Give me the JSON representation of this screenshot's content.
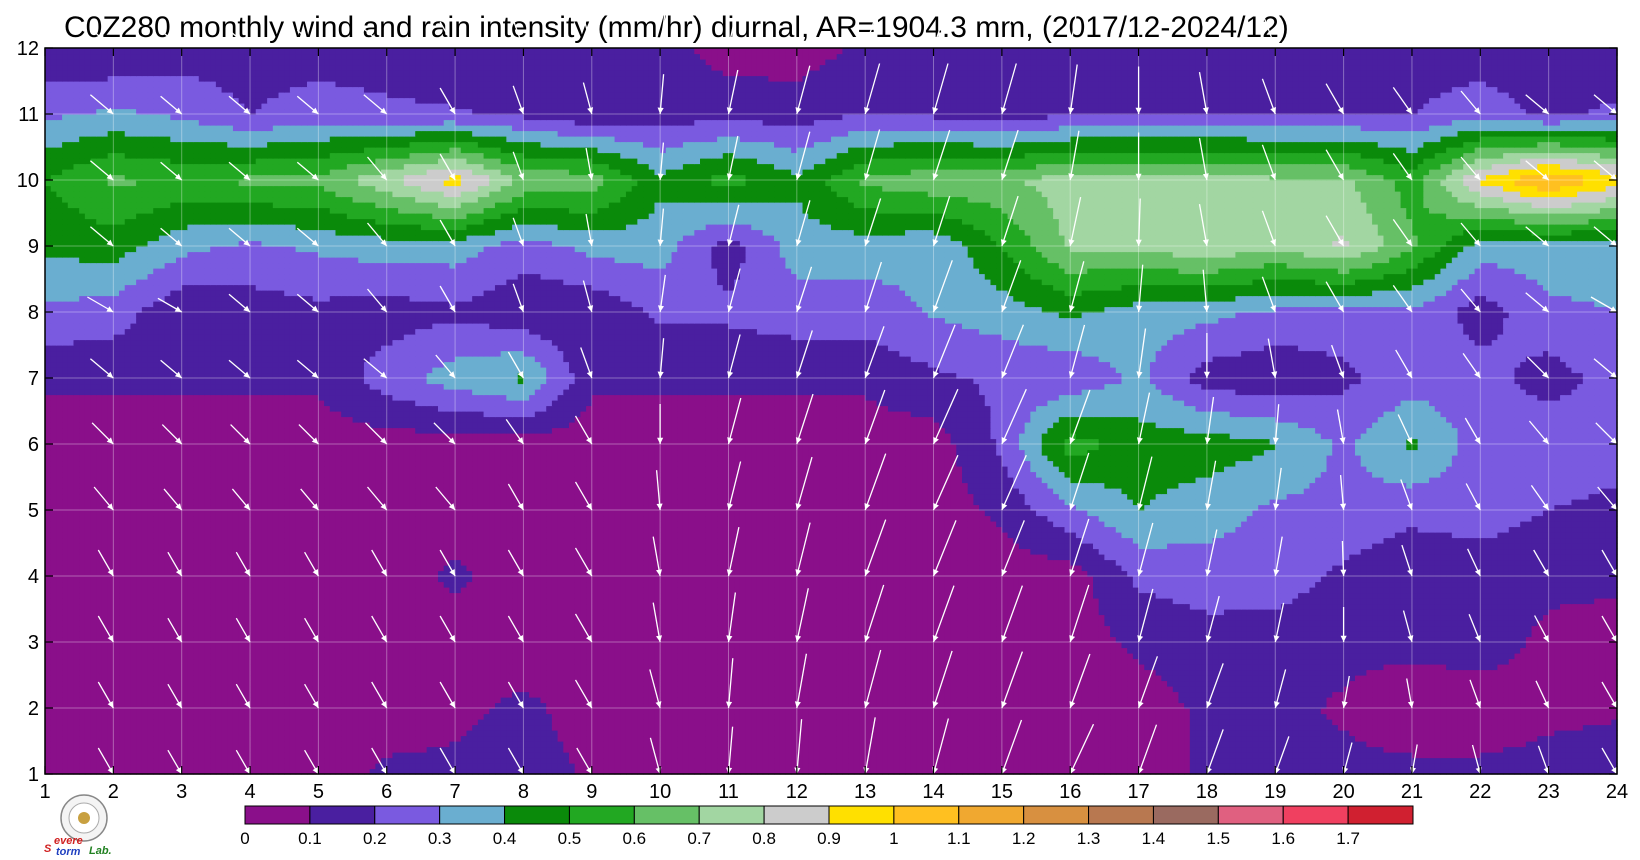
{
  "chart_data": {
    "type": "heatmap",
    "title": "C0Z280 monthly wind and rain intensity (mm/hr) diurnal, AR=1904.3 mm, (2017/12-2024/12)",
    "xlabel": "",
    "ylabel": "",
    "xlim": [
      1,
      24
    ],
    "ylim": [
      1,
      12
    ],
    "x_ticks": [
      "1",
      "2",
      "3",
      "4",
      "5",
      "6",
      "7",
      "8",
      "9",
      "10",
      "11",
      "12",
      "13",
      "14",
      "15",
      "16",
      "17",
      "18",
      "19",
      "20",
      "21",
      "22",
      "23",
      "24"
    ],
    "y_ticks": [
      "1",
      "2",
      "3",
      "4",
      "5",
      "6",
      "7",
      "8",
      "9",
      "10",
      "11",
      "12"
    ],
    "grid": true,
    "levels": [
      0,
      0.1,
      0.2,
      0.3,
      0.4,
      0.5,
      0.6,
      0.7,
      0.8,
      0.9,
      1,
      1.1,
      1.2,
      1.3,
      1.4,
      1.5,
      1.6,
      1.7
    ],
    "level_labels": [
      "0",
      "0.1",
      "0.2",
      "0.3",
      "0.4",
      "0.5",
      "0.6",
      "0.7",
      "0.8",
      "0.9",
      "1",
      "1.1",
      "1.2",
      "1.3",
      "1.4",
      "1.5",
      "1.6",
      "1.7"
    ],
    "colors": [
      "#8a0f8a",
      "#4a1fa0",
      "#7a5ae0",
      "#6aaed0",
      "#0a8a0a",
      "#22a822",
      "#66c066",
      "#a2d6a2",
      "#cccccc",
      "#ffe000",
      "#ffc020",
      "#f0a830",
      "#d89040",
      "#b87850",
      "#9a6a60",
      "#e06080",
      "#f04060",
      "#d02030"
    ],
    "contour_line_color": "#f0a020",
    "rain_rows": [
      [
        0.05,
        0.05,
        0.05,
        0.05,
        0.05,
        0.12,
        0.12,
        0.14,
        0.09,
        0.05,
        0.05,
        0.05,
        0.05,
        0.05,
        0.05,
        0.05,
        0.05,
        0.12,
        0.12,
        0.12,
        0.12,
        0.12,
        0.13,
        0.14
      ],
      [
        0.05,
        0.05,
        0.05,
        0.05,
        0.05,
        0.05,
        0.08,
        0.12,
        0.06,
        0.05,
        0.05,
        0.05,
        0.05,
        0.05,
        0.05,
        0.05,
        0.05,
        0.12,
        0.12,
        0.09,
        0.05,
        0.05,
        0.08,
        0.09
      ],
      [
        0.05,
        0.05,
        0.05,
        0.05,
        0.05,
        0.05,
        0.05,
        0.05,
        0.05,
        0.05,
        0.05,
        0.05,
        0.05,
        0.05,
        0.05,
        0.05,
        0.12,
        0.16,
        0.15,
        0.12,
        0.12,
        0.14,
        0.08,
        0.06
      ],
      [
        0.05,
        0.05,
        0.05,
        0.05,
        0.05,
        0.05,
        0.12,
        0.05,
        0.1,
        0.05,
        0.05,
        0.05,
        0.05,
        0.05,
        0.05,
        0.05,
        0.22,
        0.25,
        0.25,
        0.18,
        0.12,
        0.14,
        0.12,
        0.12
      ],
      [
        0.05,
        0.05,
        0.05,
        0.05,
        0.05,
        0.05,
        0.05,
        0.05,
        0.05,
        0.05,
        0.05,
        0.05,
        0.05,
        0.05,
        0.12,
        0.28,
        0.4,
        0.35,
        0.28,
        0.27,
        0.23,
        0.25,
        0.2,
        0.17
      ],
      [
        0.05,
        0.05,
        0.05,
        0.05,
        0.05,
        0.05,
        0.05,
        0.05,
        0.05,
        0.05,
        0.05,
        0.05,
        0.05,
        0.05,
        0.22,
        0.55,
        0.45,
        0.45,
        0.41,
        0.28,
        0.42,
        0.25,
        0.28,
        0.25
      ],
      [
        0.12,
        0.12,
        0.12,
        0.12,
        0.12,
        0.25,
        0.35,
        0.42,
        0.12,
        0.12,
        0.12,
        0.12,
        0.12,
        0.18,
        0.22,
        0.22,
        0.32,
        0.15,
        0.12,
        0.18,
        0.25,
        0.25,
        0.15,
        0.25
      ],
      [
        0.28,
        0.25,
        0.12,
        0.15,
        0.17,
        0.15,
        0.18,
        0.12,
        0.12,
        0.22,
        0.22,
        0.25,
        0.25,
        0.31,
        0.35,
        0.42,
        0.35,
        0.33,
        0.28,
        0.25,
        0.28,
        0.15,
        0.28,
        0.3
      ],
      [
        0.42,
        0.45,
        0.33,
        0.28,
        0.32,
        0.35,
        0.35,
        0.25,
        0.33,
        0.35,
        0.15,
        0.35,
        0.35,
        0.32,
        0.5,
        0.72,
        0.72,
        0.78,
        0.72,
        0.82,
        0.62,
        0.35,
        0.35,
        0.35
      ],
      [
        0.5,
        0.62,
        0.58,
        0.62,
        0.63,
        0.78,
        0.95,
        0.68,
        0.66,
        0.42,
        0.55,
        0.42,
        0.62,
        0.68,
        0.68,
        0.75,
        0.75,
        0.75,
        0.72,
        0.72,
        0.55,
        0.92,
        1.12,
        0.95
      ],
      [
        0.28,
        0.32,
        0.28,
        0.2,
        0.25,
        0.22,
        0.21,
        0.18,
        0.12,
        0.15,
        0.17,
        0.15,
        0.2,
        0.18,
        0.15,
        0.19,
        0.2,
        0.2,
        0.2,
        0.2,
        0.2,
        0.25,
        0.18,
        0.22
      ],
      [
        0.12,
        0.1,
        0.15,
        0.15,
        0.15,
        0.15,
        0.12,
        0.15,
        0.14,
        0.15,
        0.05,
        0.05,
        0.12,
        0.12,
        0.12,
        0.12,
        0.15,
        0.15,
        0.15,
        0.12,
        0.15,
        0.15,
        0.15,
        0.12
      ]
    ],
    "wind_dir_deg": [
      [
        300,
        300,
        300,
        300,
        300,
        300,
        300,
        300,
        300,
        285,
        265,
        265,
        260,
        255,
        250,
        245,
        250,
        250,
        250,
        255,
        260,
        285,
        290,
        300
      ],
      [
        300,
        300,
        300,
        300,
        300,
        300,
        300,
        300,
        300,
        285,
        265,
        260,
        255,
        252,
        250,
        250,
        250,
        250,
        255,
        260,
        280,
        290,
        295,
        300
      ],
      [
        300,
        300,
        300,
        300,
        300,
        300,
        300,
        300,
        300,
        280,
        262,
        258,
        252,
        250,
        250,
        252,
        255,
        255,
        258,
        270,
        285,
        292,
        298,
        300
      ],
      [
        300,
        300,
        300,
        300,
        300,
        300,
        300,
        300,
        300,
        280,
        258,
        256,
        250,
        248,
        248,
        252,
        255,
        258,
        260,
        272,
        288,
        295,
        300,
        300
      ],
      [
        310,
        310,
        310,
        310,
        310,
        310,
        310,
        300,
        300,
        275,
        256,
        254,
        250,
        246,
        246,
        252,
        256,
        260,
        262,
        275,
        290,
        298,
        305,
        310
      ],
      [
        315,
        315,
        315,
        315,
        315,
        315,
        315,
        305,
        300,
        270,
        255,
        252,
        250,
        246,
        246,
        250,
        258,
        262,
        265,
        280,
        295,
        300,
        310,
        315
      ],
      [
        320,
        320,
        320,
        320,
        320,
        320,
        310,
        300,
        290,
        265,
        255,
        252,
        250,
        248,
        248,
        255,
        262,
        270,
        280,
        290,
        300,
        305,
        315,
        320
      ],
      [
        330,
        330,
        330,
        320,
        320,
        310,
        300,
        290,
        285,
        262,
        255,
        252,
        252,
        250,
        250,
        255,
        265,
        275,
        290,
        300,
        305,
        310,
        320,
        330
      ],
      [
        320,
        320,
        320,
        320,
        320,
        310,
        300,
        290,
        280,
        265,
        256,
        254,
        252,
        252,
        252,
        258,
        268,
        280,
        290,
        300,
        305,
        310,
        320,
        320
      ],
      [
        320,
        320,
        320,
        320,
        320,
        310,
        300,
        290,
        280,
        265,
        258,
        255,
        254,
        252,
        252,
        260,
        270,
        280,
        290,
        300,
        305,
        310,
        320,
        320
      ],
      [
        320,
        320,
        320,
        320,
        320,
        320,
        300,
        290,
        285,
        265,
        258,
        255,
        254,
        254,
        254,
        262,
        270,
        280,
        290,
        300,
        305,
        310,
        320,
        320
      ],
      [
        320,
        320,
        320,
        320,
        320,
        320,
        300,
        290,
        285,
        262,
        258,
        254,
        252,
        252,
        252,
        260,
        270,
        280,
        290,
        300,
        305,
        310,
        320,
        320
      ]
    ],
    "wind_speed": [
      [
        0.4,
        0.4,
        0.35,
        0.35,
        0.35,
        0.4,
        0.4,
        0.4,
        0.4,
        0.55,
        0.75,
        0.9,
        0.95,
        0.95,
        0.95,
        0.9,
        0.85,
        0.75,
        0.6,
        0.45,
        0.4,
        0.4,
        0.4,
        0.4
      ],
      [
        0.4,
        0.4,
        0.35,
        0.35,
        0.35,
        0.4,
        0.4,
        0.4,
        0.45,
        0.6,
        0.8,
        0.9,
        1.0,
        1.0,
        1.0,
        0.95,
        0.9,
        0.75,
        0.6,
        0.45,
        0.4,
        0.4,
        0.4,
        0.4
      ],
      [
        0.4,
        0.4,
        0.35,
        0.35,
        0.35,
        0.4,
        0.4,
        0.4,
        0.45,
        0.6,
        0.8,
        0.9,
        1.0,
        1.0,
        1.0,
        1.0,
        0.9,
        0.75,
        0.6,
        0.5,
        0.45,
        0.4,
        0.4,
        0.4
      ],
      [
        0.4,
        0.4,
        0.35,
        0.35,
        0.35,
        0.4,
        0.4,
        0.4,
        0.45,
        0.6,
        0.8,
        0.9,
        1.0,
        1.0,
        1.0,
        1.0,
        0.9,
        0.75,
        0.6,
        0.5,
        0.45,
        0.4,
        0.4,
        0.4
      ],
      [
        0.4,
        0.4,
        0.35,
        0.35,
        0.35,
        0.4,
        0.4,
        0.4,
        0.45,
        0.6,
        0.8,
        0.9,
        1.0,
        1.0,
        1.0,
        1.0,
        0.9,
        0.8,
        0.65,
        0.5,
        0.45,
        0.4,
        0.4,
        0.4
      ],
      [
        0.4,
        0.4,
        0.35,
        0.35,
        0.35,
        0.4,
        0.4,
        0.4,
        0.45,
        0.6,
        0.75,
        0.85,
        0.95,
        1.0,
        1.0,
        0.95,
        0.85,
        0.75,
        0.6,
        0.5,
        0.45,
        0.4,
        0.4,
        0.4
      ],
      [
        0.4,
        0.4,
        0.35,
        0.35,
        0.35,
        0.4,
        0.4,
        0.4,
        0.45,
        0.6,
        0.7,
        0.8,
        0.9,
        0.95,
        0.95,
        0.9,
        0.8,
        0.7,
        0.6,
        0.5,
        0.45,
        0.4,
        0.4,
        0.4
      ],
      [
        0.4,
        0.4,
        0.35,
        0.35,
        0.35,
        0.4,
        0.4,
        0.4,
        0.45,
        0.55,
        0.7,
        0.75,
        0.85,
        0.9,
        0.9,
        0.85,
        0.75,
        0.65,
        0.55,
        0.5,
        0.45,
        0.4,
        0.4,
        0.4
      ],
      [
        0.4,
        0.4,
        0.35,
        0.35,
        0.35,
        0.4,
        0.4,
        0.4,
        0.45,
        0.55,
        0.65,
        0.75,
        0.8,
        0.85,
        0.85,
        0.8,
        0.75,
        0.65,
        0.55,
        0.5,
        0.45,
        0.4,
        0.4,
        0.4
      ],
      [
        0.4,
        0.4,
        0.35,
        0.35,
        0.35,
        0.4,
        0.4,
        0.4,
        0.45,
        0.55,
        0.7,
        0.8,
        0.85,
        0.85,
        0.85,
        0.8,
        0.75,
        0.65,
        0.55,
        0.5,
        0.45,
        0.4,
        0.4,
        0.4
      ],
      [
        0.4,
        0.4,
        0.35,
        0.35,
        0.35,
        0.4,
        0.4,
        0.4,
        0.45,
        0.6,
        0.7,
        0.8,
        0.85,
        0.85,
        0.85,
        0.8,
        0.75,
        0.65,
        0.55,
        0.5,
        0.45,
        0.4,
        0.4,
        0.4
      ],
      [
        0.4,
        0.4,
        0.35,
        0.35,
        0.35,
        0.4,
        0.4,
        0.4,
        0.45,
        0.6,
        0.75,
        0.8,
        0.85,
        0.85,
        0.85,
        0.8,
        0.75,
        0.65,
        0.55,
        0.5,
        0.45,
        0.4,
        0.4,
        0.4
      ]
    ]
  },
  "logo": {
    "name": "severe-storm-lab-logo",
    "text_s": "S",
    "text_evere": "evere",
    "text_torm": "torm",
    "text_lab": "Lab."
  }
}
